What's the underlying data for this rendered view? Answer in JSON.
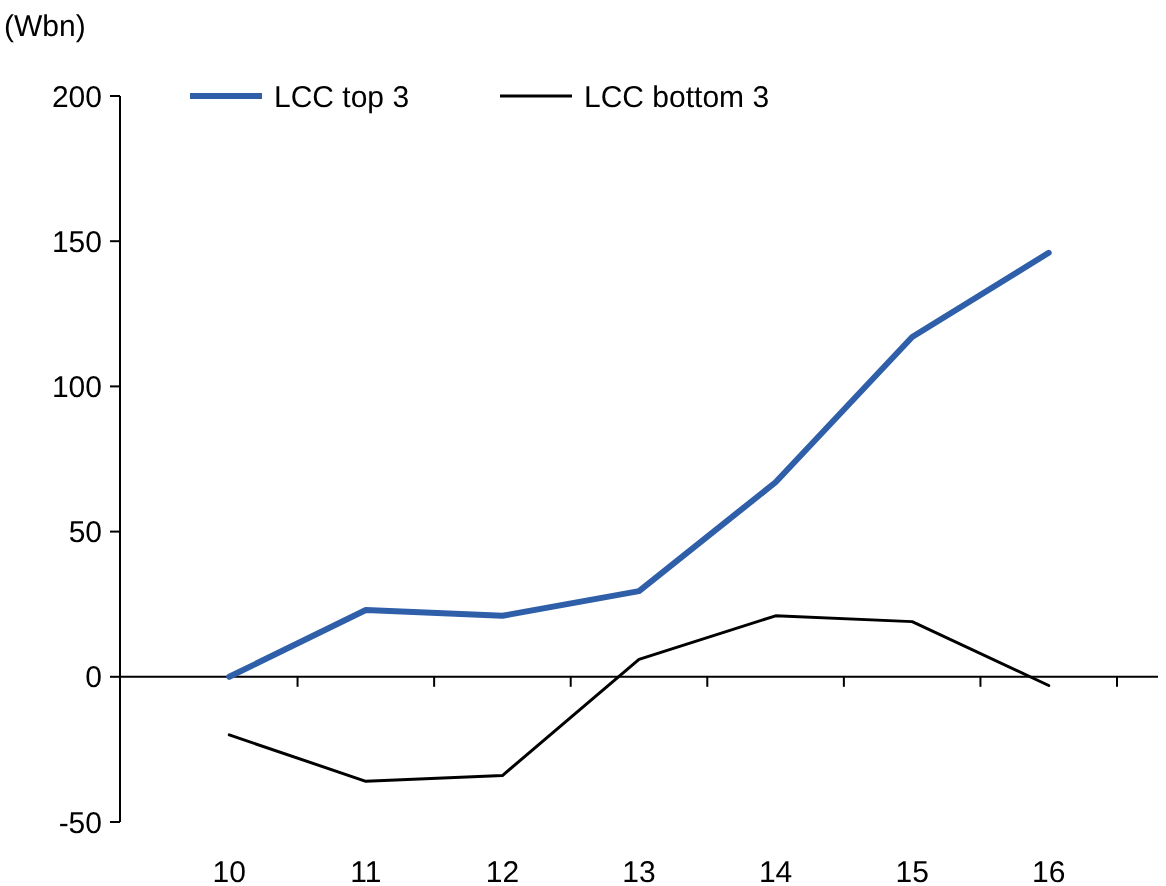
{
  "chart_data": {
    "type": "line",
    "ylabel": "(Wbn)",
    "categories": [
      "10",
      "11",
      "12",
      "13",
      "14",
      "15",
      "16"
    ],
    "series": [
      {
        "name": "LCC top 3",
        "color": "#2e5fa8",
        "values": [
          0,
          23,
          21,
          29.5,
          67,
          117,
          146
        ]
      },
      {
        "name": "LCC bottom 3",
        "color": "#000000",
        "values": [
          -20,
          -36,
          -34,
          6,
          21,
          19,
          -3
        ]
      }
    ],
    "ylim": [
      -50,
      200
    ],
    "yticks": [
      -50,
      0,
      50,
      100,
      150,
      200
    ],
    "legend": "top",
    "marker": "none"
  }
}
